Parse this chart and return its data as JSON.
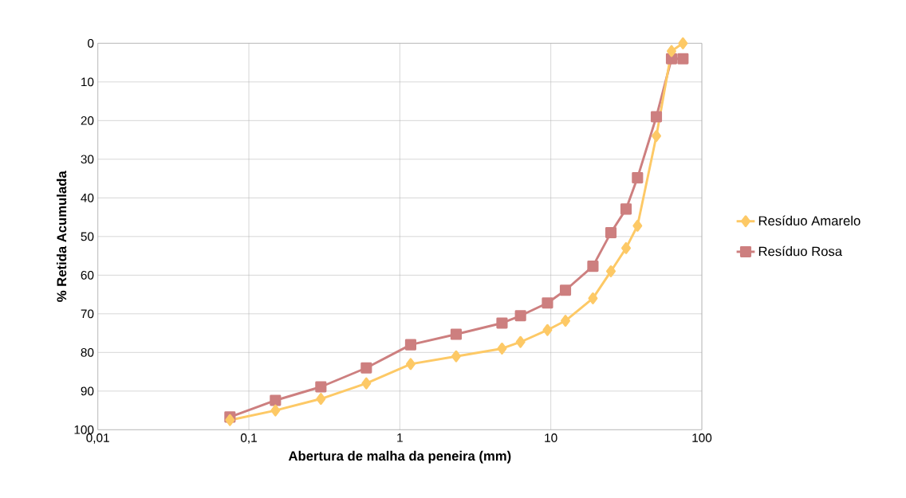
{
  "chart_data": {
    "type": "line",
    "xlabel": "Abertura de malha da peneira (mm)",
    "ylabel": "% Retida Acumulada",
    "x": [
      0.075,
      0.15,
      0.3,
      0.6,
      1.18,
      2.36,
      4.75,
      6.3,
      9.5,
      12.5,
      19,
      25,
      31.5,
      37.5,
      50,
      63,
      75
    ],
    "series": [
      {
        "name": "Resíduo Amarelo",
        "color": "#fdc966",
        "marker": "diamond",
        "values": [
          97.5,
          95,
          92,
          88,
          83,
          81,
          79,
          77.3,
          74.2,
          71.8,
          66,
          59,
          53,
          47.2,
          24,
          2,
          0
        ]
      },
      {
        "name": "Resíduo Rosa",
        "color": "#cd7f7f",
        "marker": "square",
        "values": [
          96.7,
          92.4,
          88.9,
          84,
          78,
          75.3,
          72.4,
          70.5,
          67.2,
          63.9,
          57.7,
          49,
          42.9,
          34.8,
          19,
          4,
          4
        ]
      }
    ],
    "log": "x",
    "xlim": [
      0.01,
      100
    ],
    "xticks": [
      {
        "value": 0.01,
        "label": "0,01"
      },
      {
        "value": 0.1,
        "label": "0,1"
      },
      1,
      10,
      100
    ],
    "ylim": [
      100,
      0
    ],
    "yticks": [
      0,
      10,
      20,
      30,
      40,
      50,
      60,
      70,
      80,
      90,
      100
    ],
    "grid": true,
    "legend": "right",
    "line_style": "solid"
  }
}
